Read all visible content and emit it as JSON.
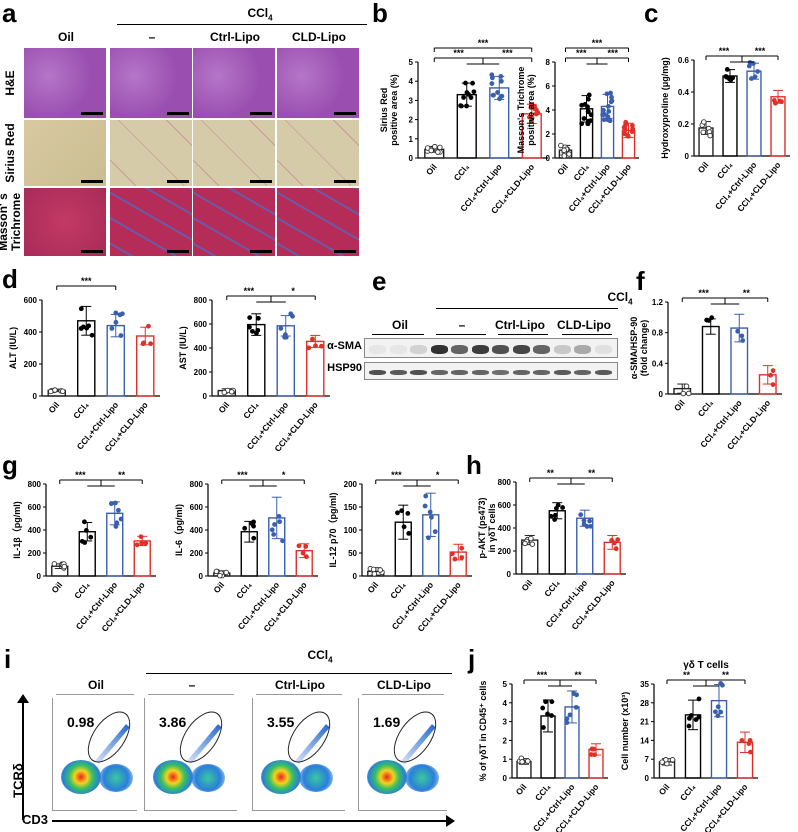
{
  "figure": {
    "panels": [
      "a",
      "b",
      "c",
      "d",
      "e",
      "f",
      "g",
      "h",
      "i",
      "j"
    ],
    "colors": {
      "oil": "#000000",
      "ccl4": "#000000",
      "ctrl_lipo": "#3a5fae",
      "cld_lipo": "#e0302a"
    }
  },
  "group_labels": {
    "ccl4_header": "CCl4",
    "oil": "Oil",
    "dash": "–",
    "ctrl": "Ctrl-Lipo",
    "cld": "CLD-Lipo",
    "x_categories": [
      "Oil",
      "CCl4",
      "CCl4+Ctrl-Lipo",
      "CCl4+CLD-Lipo"
    ]
  },
  "panel_a": {
    "label": "a",
    "row_labels": [
      "H&E",
      "Sirius Red",
      "Masson' s Trichrome"
    ],
    "row_label_lines": [
      [
        "H&E"
      ],
      [
        "Sirius Red"
      ],
      [
        "Masson' s",
        "Trichrome"
      ]
    ],
    "columns": [
      "Oil",
      "–",
      "Ctrl-Lipo",
      "CLD-Lipo"
    ]
  },
  "panel_e": {
    "label": "e",
    "bands": [
      "α-SMA",
      "HSP90"
    ],
    "lanes": 12,
    "groups": [
      "Oil",
      "–",
      "Ctrl-Lipo",
      "CLD-Lipo"
    ],
    "asma_intensity": [
      0.05,
      0.05,
      0.15,
      0.95,
      0.7,
      0.9,
      0.8,
      0.85,
      0.7,
      0.2,
      0.35,
      0.08
    ],
    "hsp90_intensity": [
      0.8,
      0.75,
      0.8,
      0.7,
      0.7,
      0.7,
      0.65,
      0.7,
      0.7,
      0.75,
      0.7,
      0.75
    ]
  },
  "panel_i": {
    "label": "i",
    "y_axis": "TCRδ",
    "x_axis": "CD3",
    "columns": [
      "Oil",
      "–",
      "Ctrl-Lipo",
      "CLD-Lipo"
    ],
    "gate_percent": [
      "0.98",
      "3.86",
      "3.55",
      "1.69"
    ]
  },
  "chart_data": [
    {
      "panel": "b",
      "id": "b1",
      "type": "bar",
      "ylabel": "Sirius Red positive area (%)",
      "ylabel_lines": [
        "Sirius Red",
        "positive area (%)"
      ],
      "categories": [
        "Oil",
        "CCl4",
        "CCl4+Ctrl-Lipo",
        "CCl4+CLD-Lipo"
      ],
      "values": [
        0.45,
        3.3,
        3.65,
        2.3
      ],
      "errors": [
        0.15,
        0.6,
        0.6,
        0.5
      ],
      "ylim": [
        0,
        5
      ],
      "yticks": [
        0,
        1,
        2,
        3,
        4,
        5
      ],
      "n": [
        9,
        10,
        10,
        10
      ],
      "sig": [
        {
          "from": 0,
          "to": 3,
          "label": "***",
          "level": 2
        },
        {
          "from": 1,
          "to": 2,
          "label": "***",
          "level": 1,
          "type": "pair_left"
        },
        {
          "from": 2,
          "to": 3,
          "label": "***",
          "level": 1,
          "type": "pair_right"
        }
      ]
    },
    {
      "panel": "b",
      "id": "b2",
      "type": "bar",
      "ylabel": "Masson's Trichrome positive area (%)",
      "ylabel_lines": [
        "Masson's Trichrome",
        "positive area (%)"
      ],
      "categories": [
        "Oil",
        "CCl4",
        "CCl4+Ctrl-Lipo",
        "CCl4+CLD-Lipo"
      ],
      "values": [
        0.65,
        4.1,
        4.3,
        2.3
      ],
      "errors": [
        0.4,
        1.1,
        1.0,
        0.6
      ],
      "ylim": [
        0,
        8
      ],
      "yticks": [
        0,
        2,
        4,
        6,
        8
      ],
      "n": [
        12,
        14,
        14,
        12
      ],
      "sig": [
        {
          "from": 0,
          "to": 3,
          "label": "***",
          "level": 2
        },
        {
          "from": 1,
          "to": 2,
          "label": "***",
          "level": 1,
          "type": "pair_left"
        },
        {
          "from": 2,
          "to": 3,
          "label": "***",
          "level": 1,
          "type": "pair_right"
        }
      ]
    },
    {
      "panel": "c",
      "id": "c",
      "type": "bar",
      "ylabel": "Hydroxyproline (μg/mg)",
      "ylabel_lines": [
        "Hydroxyproline (μg/mg)"
      ],
      "categories": [
        "Oil",
        "CCl4",
        "CCl4+Ctrl-Lipo",
        "CCl4+CLD-Lipo"
      ],
      "values": [
        0.175,
        0.5,
        0.53,
        0.37
      ],
      "errors": [
        0.04,
        0.04,
        0.05,
        0.04
      ],
      "ylim": [
        0,
        0.6
      ],
      "yticks": [
        0.0,
        0.2,
        0.4,
        0.6
      ],
      "n": [
        6,
        6,
        6,
        4
      ],
      "sig": [
        {
          "from": 1,
          "to": 2,
          "label": "***",
          "level": 1,
          "type": "pair_left",
          "from_grp": 0
        },
        {
          "from": 2,
          "to": 3,
          "label": "***",
          "level": 1,
          "type": "pair_right"
        }
      ]
    },
    {
      "panel": "d",
      "id": "d1",
      "type": "bar",
      "ylabel": "ALT (IU/L)",
      "ylabel_lines": [
        "ALT (IU/L)"
      ],
      "categories": [
        "Oil",
        "CCl4",
        "CCl4+Ctrl-Lipo",
        "CCl4+CLD-Lipo"
      ],
      "values": [
        35,
        470,
        440,
        375
      ],
      "errors": [
        8,
        90,
        70,
        55
      ],
      "ylim": [
        0,
        600
      ],
      "yticks": [
        0,
        200,
        400,
        600
      ],
      "n": [
        6,
        6,
        6,
        4
      ],
      "sig": [
        {
          "from": 0,
          "to": 2,
          "label": "***",
          "level": 2
        }
      ]
    },
    {
      "panel": "d",
      "id": "d2",
      "type": "bar",
      "ylabel": "AST (IU/L)",
      "ylabel_lines": [
        "AST (IU/L)"
      ],
      "categories": [
        "Oil",
        "CCl4",
        "CCl4+Ctrl-Lipo",
        "CCl4+CLD-Lipo"
      ],
      "values": [
        45,
        595,
        585,
        455
      ],
      "errors": [
        15,
        90,
        85,
        50
      ],
      "ylim": [
        0,
        800
      ],
      "yticks": [
        0,
        200,
        400,
        600,
        800
      ],
      "n": [
        6,
        6,
        6,
        4
      ],
      "sig": [
        {
          "from": 1,
          "to": 2,
          "label": "***",
          "level": 1,
          "type": "pair_left",
          "from_grp": 0
        },
        {
          "from": 2,
          "to": 3,
          "label": "*",
          "level": 1,
          "type": "pair_right"
        }
      ]
    },
    {
      "panel": "f",
      "id": "f",
      "type": "bar",
      "ylabel": "α-SMA/HSP-90 (fold change)",
      "ylabel_lines": [
        "α-SMA/HSP-90",
        "(fold change)"
      ],
      "categories": [
        "Oil",
        "CCl4",
        "CCl4+Ctrl-Lipo",
        "CCl4+CLD-Lipo"
      ],
      "values": [
        0.07,
        0.88,
        0.86,
        0.25
      ],
      "errors": [
        0.06,
        0.1,
        0.18,
        0.12
      ],
      "ylim": [
        0,
        1.2
      ],
      "yticks": [
        0.0,
        0.4,
        0.8,
        1.2
      ],
      "n": [
        3,
        3,
        3,
        3
      ],
      "sig": [
        {
          "from": 1,
          "to": 2,
          "label": "***",
          "level": 1,
          "type": "pair_left",
          "from_grp": 0
        },
        {
          "from": 2,
          "to": 3,
          "label": "**",
          "level": 1,
          "type": "pair_right"
        }
      ]
    },
    {
      "panel": "g",
      "id": "g1",
      "type": "bar",
      "ylabel": "IL-1β (pg/ml)",
      "ylabel_lines": [
        "IL-1β（pg/ml)"
      ],
      "categories": [
        "Oil",
        "CCl4",
        "CCl4+Ctrl-Lipo",
        "CCl4+CLD-Lipo"
      ],
      "values": [
        85,
        385,
        545,
        305
      ],
      "errors": [
        20,
        80,
        100,
        40
      ],
      "ylim": [
        0,
        800
      ],
      "yticks": [
        0,
        200,
        400,
        600,
        800
      ],
      "n": [
        6,
        5,
        6,
        4
      ],
      "sig": [
        {
          "from": 1,
          "to": 2,
          "label": "***",
          "level": 1,
          "type": "pair_left",
          "from_grp": 0
        },
        {
          "from": 2,
          "to": 3,
          "label": "**",
          "level": 1,
          "type": "pair_right"
        }
      ]
    },
    {
      "panel": "g",
      "id": "g2",
      "type": "bar",
      "ylabel": "IL-6 (pg/ml)",
      "ylabel_lines": [
        "IL-6（pg/ml)"
      ],
      "categories": [
        "Oil",
        "CCl4",
        "CCl4+Ctrl-Lipo",
        "CCl4+CLD-Lipo"
      ],
      "values": [
        25,
        385,
        505,
        220
      ],
      "errors": [
        20,
        90,
        180,
        60
      ],
      "ylim": [
        0,
        800
      ],
      "yticks": [
        0,
        200,
        400,
        600,
        800
      ],
      "n": [
        6,
        5,
        6,
        4
      ],
      "sig": [
        {
          "from": 1,
          "to": 2,
          "label": "***",
          "level": 1,
          "type": "pair_left",
          "from_grp": 0
        },
        {
          "from": 2,
          "to": 3,
          "label": "*",
          "level": 1,
          "type": "pair_right"
        }
      ]
    },
    {
      "panel": "g",
      "id": "g3",
      "type": "bar",
      "ylabel": "IL-12 p70 (pg/ml)",
      "ylabel_lines": [
        "IL-12 p70（pg/ml)"
      ],
      "categories": [
        "Oil",
        "CCl4",
        "CCl4+Ctrl-Lipo",
        "CCl4+CLD-Lipo"
      ],
      "values": [
        10,
        117,
        133,
        52
      ],
      "errors": [
        8,
        37,
        47,
        17
      ],
      "ylim": [
        0,
        200
      ],
      "yticks": [
        0,
        50,
        100,
        150,
        200
      ],
      "n": [
        6,
        5,
        6,
        4
      ],
      "sig": [
        {
          "from": 1,
          "to": 2,
          "label": "***",
          "level": 1,
          "type": "pair_left",
          "from_grp": 0
        },
        {
          "from": 2,
          "to": 3,
          "label": "*",
          "level": 1,
          "type": "pair_right"
        }
      ]
    },
    {
      "panel": "h",
      "id": "h",
      "type": "bar",
      "ylabel": "p-AKT (ps473) in γδT cells",
      "ylabel_lines": [
        "p-AKT (ps473)",
        "in γδT cells"
      ],
      "categories": [
        "Oil",
        "CCl4",
        "CCl4+Ctrl-Lipo",
        "CCl4+CLD-Lipo"
      ],
      "values": [
        295,
        550,
        485,
        275
      ],
      "errors": [
        40,
        70,
        70,
        60
      ],
      "ylim": [
        0,
        800
      ],
      "yticks": [
        0,
        200,
        400,
        600,
        800
      ],
      "n": [
        5,
        6,
        6,
        4
      ],
      "sig": [
        {
          "from": 1,
          "to": 2,
          "label": "**",
          "level": 1,
          "type": "pair_left",
          "from_grp": 0
        },
        {
          "from": 2,
          "to": 3,
          "label": "**",
          "level": 1,
          "type": "pair_right"
        }
      ]
    },
    {
      "panel": "j",
      "id": "j1",
      "type": "bar",
      "ylabel": "% of γδT in CD45+ cells",
      "ylabel_lines": [
        "% of γδT in CD45⁺ cells"
      ],
      "categories": [
        "Oil",
        "CCl4",
        "CCl4+Ctrl-Lipo",
        "CCl4+CLD-Lipo"
      ],
      "values": [
        0.88,
        3.3,
        3.78,
        1.52
      ],
      "errors": [
        0.15,
        0.85,
        0.85,
        0.3
      ],
      "ylim": [
        0,
        5
      ],
      "yticks": [
        0,
        1,
        2,
        3,
        4,
        5
      ],
      "n": [
        5,
        6,
        6,
        4
      ],
      "sig": [
        {
          "from": 1,
          "to": 2,
          "label": "***",
          "level": 1,
          "type": "pair_left",
          "from_grp": 0
        },
        {
          "from": 2,
          "to": 3,
          "label": "**",
          "level": 1,
          "type": "pair_right"
        }
      ]
    },
    {
      "panel": "j",
      "id": "j2",
      "type": "bar",
      "title": "γδ T cells",
      "ylabel": "Cell number (x10^3)",
      "ylabel_lines": [
        "Cell number (x10³)"
      ],
      "categories": [
        "Oil",
        "CCl4",
        "CCl4+Ctrl-Lipo",
        "CCl4+CLD-Lipo"
      ],
      "values": [
        6,
        23.5,
        28.8,
        13.3
      ],
      "errors": [
        1.2,
        5.5,
        6,
        3.8
      ],
      "ylim": [
        0,
        35
      ],
      "yticks": [
        0,
        7,
        14,
        21,
        28,
        35
      ],
      "n": [
        5,
        6,
        6,
        4
      ],
      "sig": [
        {
          "from": 1,
          "to": 2,
          "label": "**",
          "level": 1,
          "type": "pair_left",
          "from_grp": 0
        },
        {
          "from": 2,
          "to": 3,
          "label": "**",
          "level": 1,
          "type": "pair_right"
        }
      ]
    }
  ]
}
